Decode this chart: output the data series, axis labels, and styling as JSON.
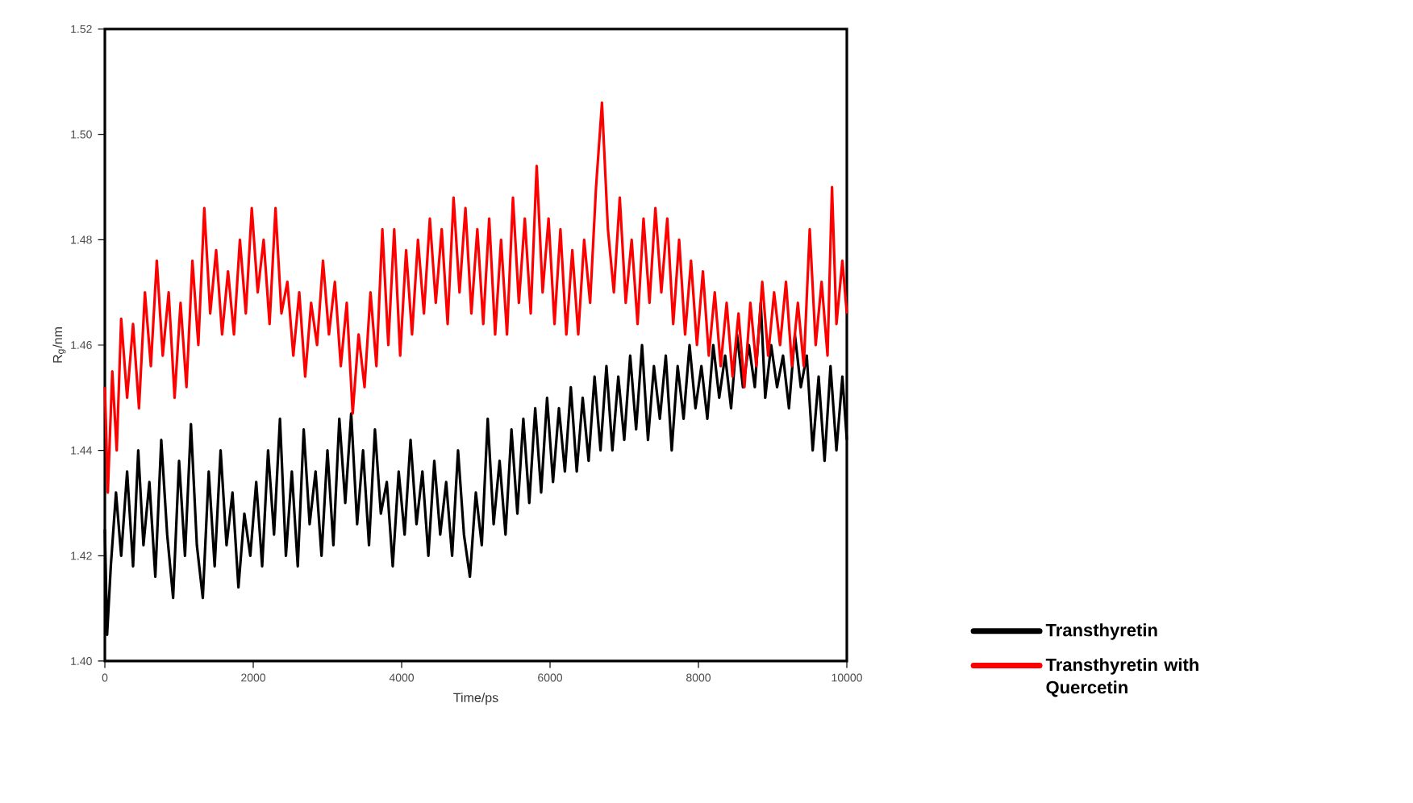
{
  "chart_data": {
    "type": "line",
    "xlabel": "Time/ps",
    "ylabel": "R$_{g}$/nm",
    "xlim": [
      0,
      10000
    ],
    "ylim": [
      1.4,
      1.52
    ],
    "xticks": [
      0,
      2000,
      4000,
      6000,
      8000,
      10000
    ],
    "yticks": [
      {
        "value": 1.4,
        "label": "1.40"
      },
      {
        "value": 1.42,
        "label": "1.42"
      },
      {
        "value": 1.44,
        "label": "1.44"
      },
      {
        "value": 1.46,
        "label": "1.46"
      },
      {
        "value": 1.48,
        "label": "1.48"
      },
      {
        "value": 1.5,
        "label": "1.50"
      },
      {
        "value": 1.52,
        "label": "1.52"
      }
    ],
    "grid": false,
    "legend": "bottom right",
    "marker": "none",
    "line_style": "solid",
    "series": [
      {
        "name": "Transthyretin",
        "color": "#000000",
        "x": [
          0,
          30,
          80,
          150,
          220,
          300,
          380,
          450,
          520,
          600,
          680,
          760,
          840,
          920,
          1000,
          1080,
          1160,
          1240,
          1320,
          1400,
          1480,
          1560,
          1640,
          1720,
          1800,
          1880,
          1960,
          2040,
          2120,
          2200,
          2280,
          2360,
          2440,
          2520,
          2600,
          2680,
          2760,
          2840,
          2920,
          3000,
          3080,
          3160,
          3240,
          3320,
          3400,
          3480,
          3560,
          3640,
          3720,
          3800,
          3880,
          3960,
          4040,
          4120,
          4200,
          4280,
          4360,
          4440,
          4520,
          4600,
          4680,
          4760,
          4840,
          4920,
          5000,
          5080,
          5160,
          5240,
          5320,
          5400,
          5480,
          5560,
          5640,
          5720,
          5800,
          5880,
          5960,
          6040,
          6120,
          6200,
          6280,
          6360,
          6440,
          6520,
          6600,
          6680,
          6760,
          6840,
          6920,
          7000,
          7080,
          7160,
          7240,
          7320,
          7400,
          7480,
          7560,
          7640,
          7720,
          7800,
          7880,
          7960,
          8040,
          8120,
          8200,
          8280,
          8360,
          8440,
          8520,
          8600,
          8680,
          8760,
          8840,
          8900,
          8980,
          9060,
          9140,
          9220,
          9300,
          9380,
          9460,
          9540,
          9620,
          9700,
          9780,
          9860,
          9940,
          10000
        ],
        "values": [
          1.425,
          1.405,
          1.418,
          1.432,
          1.42,
          1.436,
          1.418,
          1.44,
          1.422,
          1.434,
          1.416,
          1.442,
          1.424,
          1.412,
          1.438,
          1.42,
          1.445,
          1.422,
          1.412,
          1.436,
          1.418,
          1.44,
          1.422,
          1.432,
          1.414,
          1.428,
          1.42,
          1.434,
          1.418,
          1.44,
          1.424,
          1.446,
          1.42,
          1.436,
          1.418,
          1.444,
          1.426,
          1.436,
          1.42,
          1.44,
          1.422,
          1.446,
          1.43,
          1.447,
          1.426,
          1.44,
          1.422,
          1.444,
          1.428,
          1.434,
          1.418,
          1.436,
          1.424,
          1.442,
          1.426,
          1.436,
          1.42,
          1.438,
          1.424,
          1.434,
          1.42,
          1.44,
          1.424,
          1.416,
          1.432,
          1.422,
          1.446,
          1.426,
          1.438,
          1.424,
          1.444,
          1.428,
          1.446,
          1.43,
          1.448,
          1.432,
          1.45,
          1.434,
          1.448,
          1.436,
          1.452,
          1.436,
          1.45,
          1.438,
          1.454,
          1.44,
          1.456,
          1.44,
          1.454,
          1.442,
          1.458,
          1.444,
          1.46,
          1.442,
          1.456,
          1.446,
          1.458,
          1.44,
          1.456,
          1.446,
          1.46,
          1.448,
          1.456,
          1.446,
          1.46,
          1.45,
          1.458,
          1.448,
          1.462,
          1.452,
          1.46,
          1.452,
          1.468,
          1.45,
          1.46,
          1.452,
          1.458,
          1.448,
          1.462,
          1.452,
          1.458,
          1.44,
          1.454,
          1.438,
          1.456,
          1.44,
          1.454,
          1.442
        ]
      },
      {
        "name": "Transthyretin with Quercetin",
        "color": "#ff0000",
        "x": [
          0,
          40,
          100,
          160,
          220,
          300,
          380,
          460,
          540,
          620,
          700,
          780,
          860,
          940,
          1020,
          1100,
          1180,
          1260,
          1340,
          1420,
          1500,
          1580,
          1660,
          1740,
          1820,
          1900,
          1980,
          2060,
          2140,
          2220,
          2300,
          2380,
          2460,
          2540,
          2620,
          2700,
          2780,
          2860,
          2940,
          3020,
          3100,
          3180,
          3260,
          3340,
          3420,
          3500,
          3580,
          3660,
          3740,
          3820,
          3900,
          3980,
          4060,
          4140,
          4220,
          4300,
          4380,
          4460,
          4540,
          4620,
          4700,
          4780,
          4860,
          4940,
          5020,
          5100,
          5180,
          5260,
          5340,
          5420,
          5500,
          5580,
          5660,
          5740,
          5820,
          5900,
          5980,
          6060,
          6140,
          6220,
          6300,
          6380,
          6460,
          6540,
          6620,
          6700,
          6780,
          6860,
          6940,
          7020,
          7100,
          7180,
          7260,
          7340,
          7420,
          7500,
          7580,
          7660,
          7740,
          7820,
          7900,
          7980,
          8060,
          8140,
          8220,
          8300,
          8380,
          8460,
          8540,
          8620,
          8700,
          8780,
          8860,
          8940,
          9020,
          9100,
          9180,
          9260,
          9340,
          9420,
          9500,
          9580,
          9660,
          9740,
          9800,
          9860,
          9940,
          10000
        ],
        "values": [
          1.452,
          1.432,
          1.455,
          1.44,
          1.465,
          1.45,
          1.464,
          1.448,
          1.47,
          1.456,
          1.476,
          1.458,
          1.47,
          1.45,
          1.468,
          1.452,
          1.476,
          1.46,
          1.486,
          1.466,
          1.478,
          1.462,
          1.474,
          1.462,
          1.48,
          1.466,
          1.486,
          1.47,
          1.48,
          1.464,
          1.486,
          1.466,
          1.472,
          1.458,
          1.47,
          1.454,
          1.468,
          1.46,
          1.476,
          1.462,
          1.472,
          1.456,
          1.468,
          1.447,
          1.462,
          1.452,
          1.47,
          1.456,
          1.482,
          1.46,
          1.482,
          1.458,
          1.478,
          1.462,
          1.48,
          1.466,
          1.484,
          1.468,
          1.482,
          1.464,
          1.488,
          1.47,
          1.486,
          1.466,
          1.482,
          1.464,
          1.484,
          1.462,
          1.48,
          1.462,
          1.488,
          1.468,
          1.484,
          1.466,
          1.494,
          1.47,
          1.484,
          1.464,
          1.482,
          1.462,
          1.478,
          1.462,
          1.48,
          1.468,
          1.49,
          1.506,
          1.482,
          1.47,
          1.488,
          1.468,
          1.48,
          1.464,
          1.484,
          1.468,
          1.486,
          1.47,
          1.484,
          1.464,
          1.48,
          1.462,
          1.476,
          1.46,
          1.474,
          1.458,
          1.47,
          1.456,
          1.468,
          1.454,
          1.466,
          1.452,
          1.468,
          1.456,
          1.472,
          1.458,
          1.47,
          1.46,
          1.472,
          1.456,
          1.468,
          1.456,
          1.482,
          1.46,
          1.472,
          1.458,
          1.49,
          1.464,
          1.476,
          1.466
        ]
      }
    ]
  }
}
